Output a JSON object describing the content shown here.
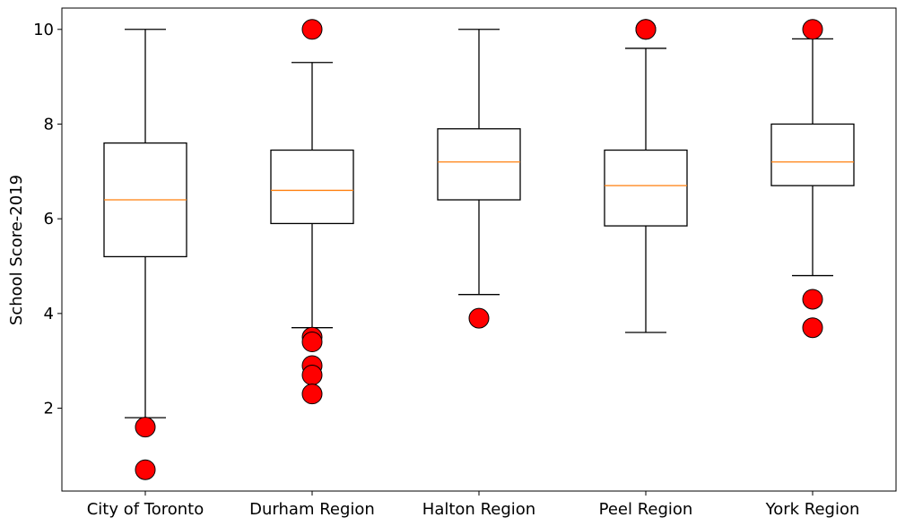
{
  "chart_data": {
    "type": "boxplot",
    "title": "",
    "xlabel": "",
    "ylabel": "School Score-2019",
    "ylim": [
      0.25,
      10.45
    ],
    "yticks": [
      2,
      4,
      6,
      8,
      10
    ],
    "grid": false,
    "categories": [
      "City of Toronto",
      "Durham Region",
      "Halton Region",
      "Peel Region",
      "York Region"
    ],
    "boxes": [
      {
        "category": "City of Toronto",
        "whisker_low": 1.8,
        "q1": 5.2,
        "median": 6.4,
        "q3": 7.6,
        "whisker_high": 10.0,
        "outliers": [
          1.6,
          0.7
        ]
      },
      {
        "category": "Durham Region",
        "whisker_low": 3.7,
        "q1": 5.9,
        "median": 6.6,
        "q3": 7.45,
        "whisker_high": 9.3,
        "outliers": [
          10.0,
          3.5,
          3.4,
          2.9,
          2.7,
          2.3
        ]
      },
      {
        "category": "Halton Region",
        "whisker_low": 4.4,
        "q1": 6.4,
        "median": 7.2,
        "q3": 7.9,
        "whisker_high": 10.0,
        "outliers": [
          3.9
        ]
      },
      {
        "category": "Peel Region",
        "whisker_low": 3.6,
        "q1": 5.85,
        "median": 6.7,
        "q3": 7.45,
        "whisker_high": 9.6,
        "outliers": [
          10.0,
          10.0
        ]
      },
      {
        "category": "York Region",
        "whisker_low": 4.8,
        "q1": 6.7,
        "median": 7.2,
        "q3": 8.0,
        "whisker_high": 9.8,
        "outliers": [
          10.0,
          4.3,
          3.7
        ]
      }
    ],
    "colors": {
      "box": "#000000",
      "median": "#ff7f0e",
      "outlier_fill": "#ff0000",
      "outlier_edge": "#000000",
      "background": "#ffffff"
    }
  }
}
